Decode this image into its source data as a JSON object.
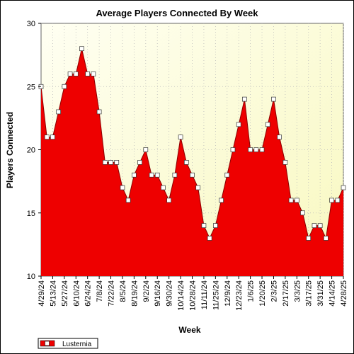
{
  "chart_data": {
    "type": "area",
    "title": "Average Players Connected By Week",
    "xlabel": "Week",
    "ylabel": "Players Connected",
    "ylim": [
      10,
      30
    ],
    "yticks": [
      10,
      15,
      20,
      25,
      30
    ],
    "grid": true,
    "legend_position": "bottom-left",
    "x_tick_labels": [
      "4/29/24",
      "5/13/24",
      "5/27/24",
      "6/10/24",
      "6/24/24",
      "7/8/24",
      "7/22/24",
      "8/5/24",
      "8/19/24",
      "9/2/24",
      "9/16/24",
      "9/30/24",
      "10/14/24",
      "10/28/24",
      "11/11/24",
      "11/25/24",
      "12/9/24",
      "12/23/24",
      "1/6/25",
      "1/20/25",
      "2/3/25",
      "2/17/25",
      "3/3/25",
      "3/17/25",
      "3/31/25",
      "4/14/25",
      "4/28/25"
    ],
    "series": [
      {
        "name": "Lusternia",
        "color": "#ee0000",
        "x": [
          "4/29/24",
          "5/6/24",
          "5/13/24",
          "5/20/24",
          "5/27/24",
          "6/3/24",
          "6/10/24",
          "6/17/24",
          "6/24/24",
          "7/1/24",
          "7/8/24",
          "7/15/24",
          "7/22/24",
          "7/29/24",
          "8/5/24",
          "8/12/24",
          "8/19/24",
          "8/26/24",
          "9/2/24",
          "9/9/24",
          "9/16/24",
          "9/23/24",
          "9/30/24",
          "10/7/24",
          "10/14/24",
          "10/21/24",
          "10/28/24",
          "11/4/24",
          "11/11/24",
          "11/18/24",
          "11/25/24",
          "12/2/24",
          "12/9/24",
          "12/16/24",
          "12/23/24",
          "12/30/24",
          "1/6/25",
          "1/13/25",
          "1/20/25",
          "1/27/25",
          "2/3/25",
          "2/10/25",
          "2/17/25",
          "2/24/25",
          "3/3/25",
          "3/10/25",
          "3/17/25",
          "3/24/25",
          "3/31/25",
          "4/7/25",
          "4/14/25",
          "4/21/25",
          "4/28/25"
        ],
        "values": [
          25,
          21,
          21,
          23,
          25,
          26,
          26,
          28,
          26,
          26,
          23,
          19,
          19,
          19,
          17,
          16,
          18,
          19,
          20,
          18,
          18,
          17,
          16,
          18,
          21,
          19,
          18,
          17,
          14,
          13,
          14,
          16,
          18,
          20,
          22,
          24,
          20,
          20,
          20,
          22,
          24,
          21,
          19,
          16,
          16,
          15,
          13,
          14,
          14,
          13,
          16,
          16,
          17
        ]
      }
    ]
  }
}
